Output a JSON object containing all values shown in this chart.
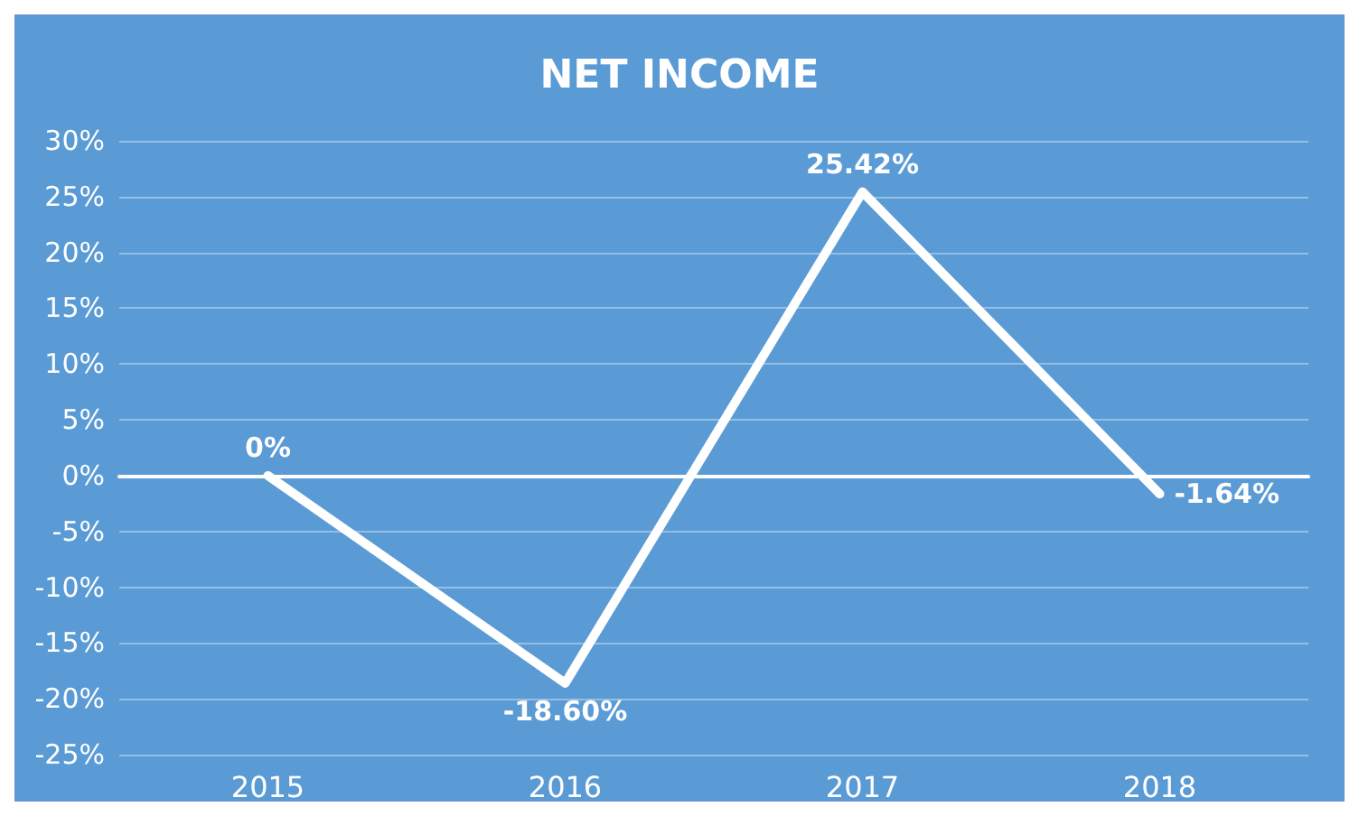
{
  "chart_data": {
    "type": "line",
    "title": "NET INCOME",
    "categories": [
      "2015",
      "2016",
      "2017",
      "2018"
    ],
    "series": [
      {
        "color": "#ffffff",
        "values": [
          0,
          -18.6,
          25.42,
          -1.64
        ],
        "value_labels": [
          "0%",
          "-18.60%",
          "25.42%",
          "-1.64%"
        ]
      }
    ],
    "ylim": [
      -25,
      30
    ],
    "yticks": [
      {
        "value": -25,
        "label": "-25%"
      },
      {
        "value": -20,
        "label": "-20%"
      },
      {
        "value": -15,
        "label": "-15%"
      },
      {
        "value": -10,
        "label": "-10%"
      },
      {
        "value": -5,
        "label": "-5%"
      },
      {
        "value": 0,
        "label": "0%"
      },
      {
        "value": 5,
        "label": "5%"
      },
      {
        "value": 10,
        "label": "10%"
      },
      {
        "value": 15,
        "label": "15%"
      },
      {
        "value": 20,
        "label": "20%"
      },
      {
        "value": 25,
        "label": "25%"
      },
      {
        "value": 30,
        "label": "30%"
      }
    ],
    "grid": "y",
    "marker": "none",
    "line_style": "solid"
  }
}
